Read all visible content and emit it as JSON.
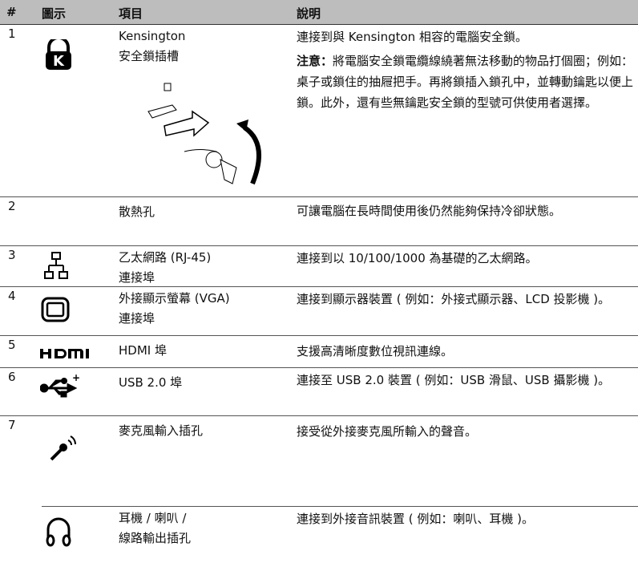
{
  "table": {
    "header": [
      "#",
      "圖示",
      "項目",
      "說明"
    ],
    "rows": [
      {
        "number": "1",
        "item": [
          "Kensington",
          "安全鎖插槽"
        ],
        "description": [
          "連接到與 Kensington 相容的電腦安全鎖。"
        ],
        "note_label": "注意：",
        "note": "將電腦安全鎖電纜線繞著無法移動的物品打個圈；例如：桌子或鎖住的抽屜把手。再將鎖插入鎖孔中，並轉動鑰匙以便上鎖。此外，還有些無鑰匙安全鎖的型號可供使用者選擇。"
      },
      {
        "number": "2",
        "item": [
          "散熱孔"
        ],
        "description": [
          "可讓電腦在長時間使用後仍然能夠保持冷卻狀態。"
        ]
      },
      {
        "number": "3",
        "item": [
          "乙太網路 (RJ-45)",
          "連接埠"
        ],
        "description": [
          "連接到以 10/100/1000 為基礎的乙太網路。"
        ]
      },
      {
        "number": "4",
        "item": [
          "外接顯示螢幕 (VGA)",
          "連接埠"
        ],
        "description": [
          "連接到顯示器裝置 ( 例如：外接式顯示器、LCD 投影機 )。"
        ]
      },
      {
        "number": "5",
        "item": [
          "HDMI 埠"
        ],
        "description": [
          "支援高清晰度數位視訊連線。"
        ]
      },
      {
        "number": "6",
        "item": [
          "USB 2.0 埠"
        ],
        "description": [
          "連接至 USB 2.0 裝置 ( 例如：USB 滑鼠、USB 攝影機 )。"
        ]
      },
      {
        "number": "7",
        "item": [
          "麥克風輸入插孔"
        ],
        "description": [
          "接受從外接麥克風所輸入的聲音。"
        ]
      },
      {
        "item": [
          "耳機 / 喇叭 /",
          "線路輸出插孔"
        ],
        "description": [
          "連接到外接音訊裝置 ( 例如：喇叭、耳機 )。"
        ]
      }
    ]
  }
}
